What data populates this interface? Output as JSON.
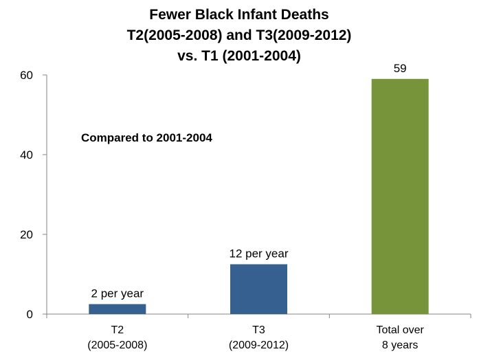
{
  "chart_data": {
    "type": "bar",
    "title_lines": [
      "Fewer Black Infant Deaths",
      "T2(2005-2008) and T3(2009-2012)",
      "vs. T1 (2001-2004)"
    ],
    "categories": [
      [
        "T2",
        "(2005-2008)"
      ],
      [
        "T3",
        "(2009-2012)"
      ],
      [
        "Total over",
        "8 years"
      ]
    ],
    "values": [
      2.5,
      12.5,
      59
    ],
    "data_labels": [
      "2 per year",
      "12 per year",
      "59"
    ],
    "bar_colors": [
      "#35608f",
      "#35608f",
      "#78943a"
    ],
    "annotation": "Compared to 2001-2004",
    "yticks": [
      0,
      20,
      40,
      60
    ],
    "ylim": [
      0,
      60
    ],
    "xlabel": "",
    "ylabel": "",
    "grid": false,
    "legend": "none"
  }
}
